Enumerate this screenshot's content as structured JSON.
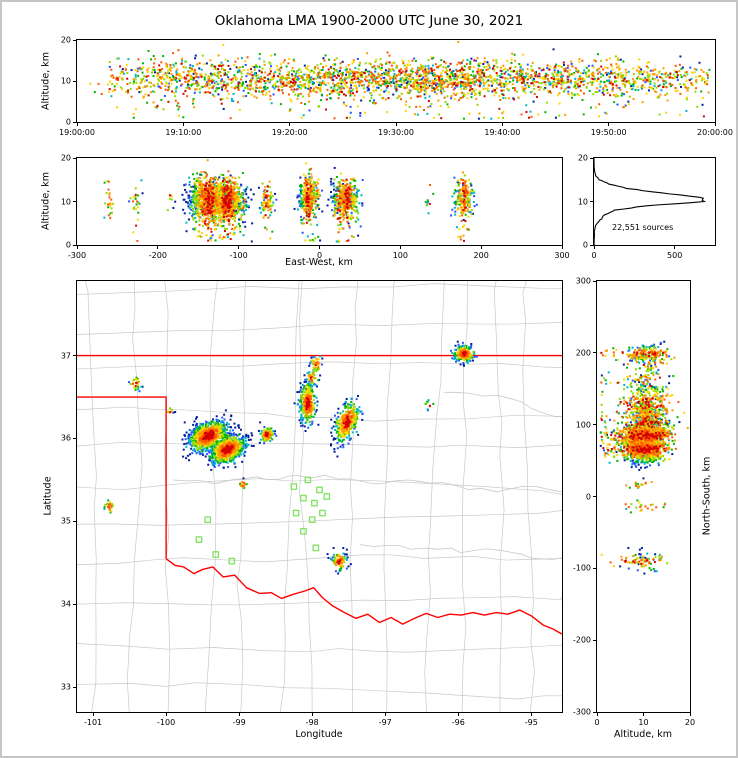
{
  "title": "Oklahoma LMA 1900-2000 UTC June 30, 2021",
  "colors": {
    "background": "#ffffff",
    "outer_border": "#c6c6c6",
    "frame": "#000000",
    "state_border": "#ff0000",
    "county_line": "#c9c9c9",
    "river_line": "#c9c9c9",
    "station_marker": "#7fe35f",
    "histogram_line": "#000000",
    "point_palette": [
      "#d40000",
      "#ff5500",
      "#ff9900",
      "#ffd500",
      "#8cdc00",
      "#00b400",
      "#00b4c8",
      "#2653ff",
      "#001da0"
    ]
  },
  "chart_data": [
    {
      "id": "time_height",
      "type": "scatter",
      "xlabel": "",
      "ylabel": "Altitude, km",
      "xlim": [
        0,
        60
      ],
      "ylim": [
        0,
        20
      ],
      "x_ticks": [
        {
          "v": 0,
          "label": "19:00:00"
        },
        {
          "v": 10,
          "label": "19:10:00"
        },
        {
          "v": 20,
          "label": "19:20:00"
        },
        {
          "v": 30,
          "label": "19:30:00"
        },
        {
          "v": 40,
          "label": "19:40:00"
        },
        {
          "v": 50,
          "label": "19:50:00"
        },
        {
          "v": 60,
          "label": "20:00:00"
        }
      ],
      "y_ticks": [
        0,
        10,
        20
      ]
    },
    {
      "id": "ew_height",
      "type": "scatter",
      "xlabel": "East-West, km",
      "ylabel": "Altitude, km",
      "xlim": [
        -300,
        300
      ],
      "ylim": [
        0,
        20
      ],
      "x_ticks": [
        -300,
        -200,
        -100,
        0,
        100,
        200,
        300
      ],
      "y_ticks": [
        0,
        10,
        20
      ]
    },
    {
      "id": "alt_histogram",
      "type": "line",
      "xlabel": "",
      "ylabel": "",
      "annotation": "22,551 sources",
      "xlim": [
        0,
        750
      ],
      "ylim": [
        0,
        20
      ],
      "x_ticks": [
        0,
        500
      ],
      "y_ticks": [
        0,
        10,
        20
      ],
      "bin_km": 1,
      "counts": [
        0,
        1,
        2,
        3,
        5,
        18,
        45,
        70,
        130,
        320,
        700,
        650,
        410,
        210,
        90,
        35,
        10,
        3,
        1,
        0,
        0
      ]
    },
    {
      "id": "map",
      "type": "scatter",
      "xlabel": "Longitude",
      "ylabel": "Latitude",
      "xlim": [
        -101.22,
        -94.58
      ],
      "ylim": [
        32.7,
        37.9
      ],
      "x_ticks": [
        -101,
        -100,
        -99,
        -98,
        -97,
        -96,
        -95
      ],
      "y_ticks": [
        33,
        34,
        35,
        36,
        37
      ],
      "state_border": [
        [
          [
            -101.22,
            37.0
          ],
          [
            -94.58,
            37.0
          ]
        ],
        [
          [
            -101.22,
            36.5
          ],
          [
            -100.0,
            36.5
          ],
          [
            -100.0,
            34.55
          ]
        ],
        [
          [
            -100.0,
            34.55
          ],
          [
            -99.88,
            34.47
          ],
          [
            -99.76,
            34.45
          ],
          [
            -99.62,
            34.37
          ],
          [
            -99.5,
            34.42
          ],
          [
            -99.36,
            34.45
          ],
          [
            -99.22,
            34.33
          ],
          [
            -99.06,
            34.35
          ],
          [
            -98.9,
            34.2
          ],
          [
            -98.72,
            34.13
          ],
          [
            -98.56,
            34.14
          ],
          [
            -98.42,
            34.07
          ],
          [
            -98.26,
            34.12
          ],
          [
            -98.1,
            34.16
          ],
          [
            -97.98,
            34.2
          ],
          [
            -97.86,
            34.08
          ],
          [
            -97.72,
            33.98
          ],
          [
            -97.56,
            33.9
          ],
          [
            -97.4,
            33.83
          ],
          [
            -97.24,
            33.88
          ],
          [
            -97.08,
            33.78
          ],
          [
            -96.92,
            33.84
          ],
          [
            -96.76,
            33.76
          ],
          [
            -96.6,
            33.83
          ],
          [
            -96.44,
            33.89
          ],
          [
            -96.28,
            33.84
          ],
          [
            -96.12,
            33.88
          ],
          [
            -95.96,
            33.87
          ],
          [
            -95.8,
            33.9
          ],
          [
            -95.64,
            33.87
          ],
          [
            -95.48,
            33.9
          ],
          [
            -95.32,
            33.88
          ],
          [
            -95.16,
            33.93
          ],
          [
            -95.0,
            33.86
          ],
          [
            -94.84,
            33.75
          ],
          [
            -94.7,
            33.7
          ],
          [
            -94.58,
            33.64
          ]
        ]
      ],
      "stations": [
        [
          -99.43,
          35.02
        ],
        [
          -99.55,
          34.78
        ],
        [
          -99.32,
          34.6
        ],
        [
          -99.1,
          34.52
        ],
        [
          -98.25,
          35.42
        ],
        [
          -98.06,
          35.5
        ],
        [
          -97.9,
          35.38
        ],
        [
          -98.12,
          35.28
        ],
        [
          -97.97,
          35.22
        ],
        [
          -97.8,
          35.3
        ],
        [
          -98.22,
          35.1
        ],
        [
          -98.0,
          35.02
        ],
        [
          -97.86,
          35.1
        ],
        [
          -98.12,
          34.88
        ],
        [
          -97.95,
          34.68
        ]
      ],
      "rivers": [
        [
          -99.9,
          35.5,
          -94.58,
          -0.004
        ],
        [
          -97.35,
          34.72,
          -94.58,
          -0.015
        ],
        [
          -96.2,
          36.55,
          -94.58,
          -0.03
        ]
      ]
    },
    {
      "id": "ns_height",
      "type": "scatter",
      "xlabel": "Altitude, km",
      "ylabel": "North-South, km",
      "xlim": [
        0,
        20
      ],
      "ylim": [
        -300,
        300
      ],
      "x_ticks": [
        0,
        10,
        20
      ],
      "y_ticks": [
        -300,
        -200,
        -100,
        0,
        100,
        200,
        300
      ]
    }
  ],
  "sources": {
    "clusters": [
      {
        "lon": -99.42,
        "lat": 36.03,
        "slon": 0.13,
        "slat": 0.085,
        "corr": 0.4,
        "alt": 10.8,
        "alt_sd": 2.3,
        "t0": 3,
        "t1": 38,
        "n": 800
      },
      {
        "lon": -99.16,
        "lat": 35.87,
        "slon": 0.12,
        "slat": 0.08,
        "corr": 0.4,
        "alt": 10.2,
        "alt_sd": 2.2,
        "t0": 18,
        "t1": 59.5,
        "n": 750
      },
      {
        "lon": -98.62,
        "lat": 36.05,
        "slon": 0.05,
        "slat": 0.05,
        "corr": 0,
        "alt": 10.0,
        "alt_sd": 1.9,
        "t0": 8,
        "t1": 22,
        "n": 90
      },
      {
        "lon": -98.06,
        "lat": 36.42,
        "slon": 0.055,
        "slat": 0.13,
        "corr": 0,
        "alt": 11.0,
        "alt_sd": 2.2,
        "t0": 6,
        "t1": 42,
        "n": 300
      },
      {
        "lon": -98.0,
        "lat": 36.73,
        "slon": 0.04,
        "slat": 0.045,
        "corr": 0,
        "alt": 11.0,
        "alt_sd": 1.8,
        "t0": 41,
        "t1": 50,
        "n": 40
      },
      {
        "lon": -97.95,
        "lat": 36.9,
        "slon": 0.04,
        "slat": 0.05,
        "corr": 0,
        "alt": 11.2,
        "alt_sd": 1.8,
        "t0": 50,
        "t1": 59,
        "n": 45
      },
      {
        "lon": -97.52,
        "lat": 36.2,
        "slon": 0.085,
        "slat": 0.11,
        "corr": 0.5,
        "alt": 10.6,
        "alt_sd": 2.2,
        "t0": 24,
        "t1": 56,
        "n": 350
      },
      {
        "lon": -95.92,
        "lat": 37.02,
        "slon": 0.07,
        "slat": 0.05,
        "corr": 0,
        "alt": 11.0,
        "alt_sd": 2.0,
        "t0": 30,
        "t1": 52,
        "n": 200
      },
      {
        "lon": -100.42,
        "lat": 36.66,
        "slon": 0.04,
        "slat": 0.04,
        "corr": 0,
        "alt": 10.0,
        "alt_sd": 2.0,
        "t0": 12,
        "t1": 18,
        "n": 25
      },
      {
        "lon": -100.78,
        "lat": 35.17,
        "slon": 0.04,
        "slat": 0.05,
        "corr": 0,
        "alt": 9.0,
        "alt_sd": 2.0,
        "t0": 0.5,
        "t1": 9,
        "n": 22
      },
      {
        "lon": -97.63,
        "lat": 34.52,
        "slon": 0.05,
        "slat": 0.06,
        "corr": 0,
        "alt": 10.0,
        "alt_sd": 2.0,
        "t0": 32,
        "t1": 46,
        "n": 90
      },
      {
        "lon": -98.95,
        "lat": 35.45,
        "slon": 0.03,
        "slat": 0.03,
        "corr": 0,
        "alt": 9.0,
        "alt_sd": 1.5,
        "t0": 14,
        "t1": 18,
        "n": 16
      },
      {
        "lon": -96.4,
        "lat": 36.4,
        "slon": 0.03,
        "slat": 0.03,
        "corr": 0,
        "alt": 10.0,
        "alt_sd": 1.5,
        "t0": 44,
        "t1": 46,
        "n": 10
      },
      {
        "lon": -99.95,
        "lat": 36.33,
        "slon": 0.025,
        "slat": 0.025,
        "corr": 0,
        "alt": 9.5,
        "alt_sd": 1.5,
        "t0": 10,
        "t1": 12,
        "n": 8
      }
    ]
  }
}
